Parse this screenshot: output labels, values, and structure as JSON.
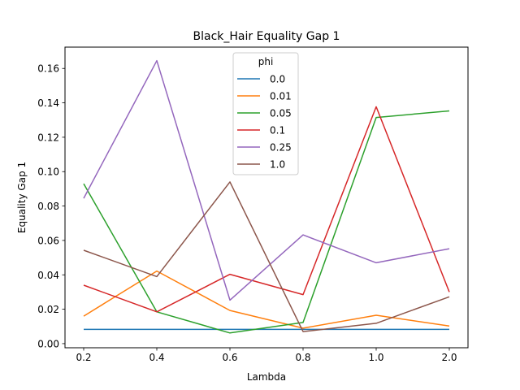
{
  "chart_data": {
    "type": "line",
    "title": "Black_Hair Equality Gap 1",
    "xlabel": "Lambda",
    "ylabel": "Equality Gap 1",
    "categories": [
      "0.2",
      "0.4",
      "0.6",
      "0.8",
      "1.0",
      "2.0"
    ],
    "ylim": [
      -0.0024,
      0.1724
    ],
    "yticks": [
      0.0,
      0.02,
      0.04,
      0.06,
      0.08,
      0.1,
      0.12,
      0.14,
      0.16
    ],
    "ytick_labels": [
      "0.00",
      "0.02",
      "0.04",
      "0.06",
      "0.08",
      "0.10",
      "0.12",
      "0.14",
      "0.16"
    ],
    "grid": false,
    "legend_title": "phi",
    "legend_position": "upper-center",
    "series": [
      {
        "name": "0.0",
        "color": "#1f77b4",
        "values": [
          0.0083,
          0.0083,
          0.0083,
          0.0083,
          0.0083,
          0.0083
        ]
      },
      {
        "name": "0.01",
        "color": "#ff7f0e",
        "values": [
          0.016,
          0.0422,
          0.0193,
          0.009,
          0.0165,
          0.0102
        ]
      },
      {
        "name": "0.05",
        "color": "#2ca02c",
        "values": [
          0.093,
          0.0185,
          0.0062,
          0.0123,
          0.1315,
          0.1353
        ]
      },
      {
        "name": "0.1",
        "color": "#d62728",
        "values": [
          0.034,
          0.0185,
          0.0403,
          0.0285,
          0.1377,
          0.03
        ]
      },
      {
        "name": "0.25",
        "color": "#9467bd",
        "values": [
          0.0845,
          0.1645,
          0.0253,
          0.0632,
          0.047,
          0.0552
        ]
      },
      {
        "name": "1.0",
        "color": "#8c564b",
        "values": [
          0.0543,
          0.039,
          0.094,
          0.007,
          0.0118,
          0.0272
        ]
      }
    ]
  }
}
